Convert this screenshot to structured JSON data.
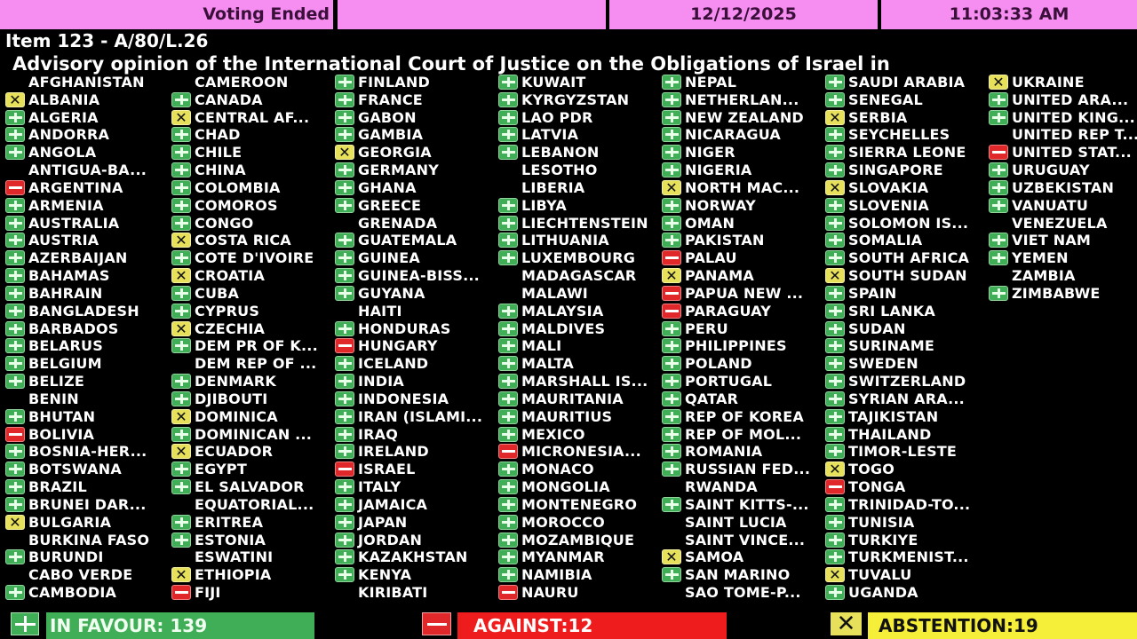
{
  "header": {
    "status": "Voting Ended",
    "blank": "",
    "date": "12/12/2025",
    "time": "11:03:33 AM"
  },
  "item": "Item 123 - A/80/L.26",
  "title": "Advisory opinion of the International Court of Justice on the Obligations of Israel in",
  "colors": {
    "header_bg": "#f58ef0",
    "yes": "#3fae57",
    "no": "#e0282a",
    "abstain": "#e6e05a"
  },
  "vote_legend": {
    "Y": "plus-icon (in favour)",
    "N": "minus-icon (against)",
    "A": "x-icon (abstention)",
    "": "no vote"
  },
  "columns": [
    [
      {
        "n": "AFGHANISTAN",
        "v": ""
      },
      {
        "n": "ALBANIA",
        "v": "A"
      },
      {
        "n": "ALGERIA",
        "v": "Y"
      },
      {
        "n": "ANDORRA",
        "v": "Y"
      },
      {
        "n": "ANGOLA",
        "v": "Y"
      },
      {
        "n": "ANTIGUA-BA...",
        "v": ""
      },
      {
        "n": "ARGENTINA",
        "v": "N"
      },
      {
        "n": "ARMENIA",
        "v": "Y"
      },
      {
        "n": "AUSTRALIA",
        "v": "Y"
      },
      {
        "n": "AUSTRIA",
        "v": "Y"
      },
      {
        "n": "AZERBAIJAN",
        "v": "Y"
      },
      {
        "n": "BAHAMAS",
        "v": "Y"
      },
      {
        "n": "BAHRAIN",
        "v": "Y"
      },
      {
        "n": "BANGLADESH",
        "v": "Y"
      },
      {
        "n": "BARBADOS",
        "v": "Y"
      },
      {
        "n": "BELARUS",
        "v": "Y"
      },
      {
        "n": "BELGIUM",
        "v": "Y"
      },
      {
        "n": "BELIZE",
        "v": "Y"
      },
      {
        "n": "BENIN",
        "v": ""
      },
      {
        "n": "BHUTAN",
        "v": "Y"
      },
      {
        "n": "BOLIVIA",
        "v": "N"
      },
      {
        "n": "BOSNIA-HER...",
        "v": "Y"
      },
      {
        "n": "BOTSWANA",
        "v": "Y"
      },
      {
        "n": "BRAZIL",
        "v": "Y"
      },
      {
        "n": "BRUNEI DAR...",
        "v": "Y"
      },
      {
        "n": "BULGARIA",
        "v": "A"
      },
      {
        "n": "BURKINA FASO",
        "v": ""
      },
      {
        "n": "BURUNDI",
        "v": "Y"
      },
      {
        "n": "CABO VERDE",
        "v": ""
      },
      {
        "n": "CAMBODIA",
        "v": "Y"
      }
    ],
    [
      {
        "n": "CAMEROON",
        "v": ""
      },
      {
        "n": "CANADA",
        "v": "Y"
      },
      {
        "n": "CENTRAL AF...",
        "v": "A"
      },
      {
        "n": "CHAD",
        "v": "Y"
      },
      {
        "n": "CHILE",
        "v": "Y"
      },
      {
        "n": "CHINA",
        "v": "Y"
      },
      {
        "n": "COLOMBIA",
        "v": "Y"
      },
      {
        "n": "COMOROS",
        "v": "Y"
      },
      {
        "n": "CONGO",
        "v": "Y"
      },
      {
        "n": "COSTA RICA",
        "v": "A"
      },
      {
        "n": "COTE D'IVOIRE",
        "v": "Y"
      },
      {
        "n": "CROATIA",
        "v": "A"
      },
      {
        "n": "CUBA",
        "v": "Y"
      },
      {
        "n": "CYPRUS",
        "v": "Y"
      },
      {
        "n": "CZECHIA",
        "v": "A"
      },
      {
        "n": "DEM PR OF K...",
        "v": "Y"
      },
      {
        "n": "DEM REP OF ...",
        "v": ""
      },
      {
        "n": "DENMARK",
        "v": "Y"
      },
      {
        "n": "DJIBOUTI",
        "v": "Y"
      },
      {
        "n": "DOMINICA",
        "v": "A"
      },
      {
        "n": "DOMINICAN ...",
        "v": "Y"
      },
      {
        "n": "ECUADOR",
        "v": "A"
      },
      {
        "n": "EGYPT",
        "v": "Y"
      },
      {
        "n": "EL SALVADOR",
        "v": "Y"
      },
      {
        "n": "EQUATORIAL...",
        "v": ""
      },
      {
        "n": "ERITREA",
        "v": "Y"
      },
      {
        "n": "ESTONIA",
        "v": "Y"
      },
      {
        "n": "ESWATINI",
        "v": ""
      },
      {
        "n": "ETHIOPIA",
        "v": "A"
      },
      {
        "n": "FIJI",
        "v": "N"
      }
    ],
    [
      {
        "n": "FINLAND",
        "v": "Y"
      },
      {
        "n": "FRANCE",
        "v": "Y"
      },
      {
        "n": "GABON",
        "v": "Y"
      },
      {
        "n": "GAMBIA",
        "v": "Y"
      },
      {
        "n": "GEORGIA",
        "v": "A"
      },
      {
        "n": "GERMANY",
        "v": "Y"
      },
      {
        "n": "GHANA",
        "v": "Y"
      },
      {
        "n": "GREECE",
        "v": "Y"
      },
      {
        "n": "GRENADA",
        "v": ""
      },
      {
        "n": "GUATEMALA",
        "v": "Y"
      },
      {
        "n": "GUINEA",
        "v": "Y"
      },
      {
        "n": "GUINEA-BISS...",
        "v": "Y"
      },
      {
        "n": "GUYANA",
        "v": "Y"
      },
      {
        "n": "HAITI",
        "v": ""
      },
      {
        "n": "HONDURAS",
        "v": "Y"
      },
      {
        "n": "HUNGARY",
        "v": "N"
      },
      {
        "n": "ICELAND",
        "v": "Y"
      },
      {
        "n": "INDIA",
        "v": "Y"
      },
      {
        "n": "INDONESIA",
        "v": "Y"
      },
      {
        "n": "IRAN (ISLAMI...",
        "v": "Y"
      },
      {
        "n": "IRAQ",
        "v": "Y"
      },
      {
        "n": "IRELAND",
        "v": "Y"
      },
      {
        "n": "ISRAEL",
        "v": "N"
      },
      {
        "n": "ITALY",
        "v": "Y"
      },
      {
        "n": "JAMAICA",
        "v": "Y"
      },
      {
        "n": "JAPAN",
        "v": "Y"
      },
      {
        "n": "JORDAN",
        "v": "Y"
      },
      {
        "n": "KAZAKHSTAN",
        "v": "Y"
      },
      {
        "n": "KENYA",
        "v": "Y"
      },
      {
        "n": "KIRIBATI",
        "v": ""
      }
    ],
    [
      {
        "n": "KUWAIT",
        "v": "Y"
      },
      {
        "n": "KYRGYZSTAN",
        "v": "Y"
      },
      {
        "n": "LAO PDR",
        "v": "Y"
      },
      {
        "n": "LATVIA",
        "v": "Y"
      },
      {
        "n": "LEBANON",
        "v": "Y"
      },
      {
        "n": "LESOTHO",
        "v": ""
      },
      {
        "n": "LIBERIA",
        "v": ""
      },
      {
        "n": "LIBYA",
        "v": "Y"
      },
      {
        "n": "LIECHTENSTEIN",
        "v": "Y"
      },
      {
        "n": "LITHUANIA",
        "v": "Y"
      },
      {
        "n": "LUXEMBOURG",
        "v": "Y"
      },
      {
        "n": "MADAGASCAR",
        "v": ""
      },
      {
        "n": "MALAWI",
        "v": ""
      },
      {
        "n": "MALAYSIA",
        "v": "Y"
      },
      {
        "n": "MALDIVES",
        "v": "Y"
      },
      {
        "n": "MALI",
        "v": "Y"
      },
      {
        "n": "MALTA",
        "v": "Y"
      },
      {
        "n": "MARSHALL IS...",
        "v": "Y"
      },
      {
        "n": "MAURITANIA",
        "v": "Y"
      },
      {
        "n": "MAURITIUS",
        "v": "Y"
      },
      {
        "n": "MEXICO",
        "v": "Y"
      },
      {
        "n": "MICRONESIA...",
        "v": "N"
      },
      {
        "n": "MONACO",
        "v": "Y"
      },
      {
        "n": "MONGOLIA",
        "v": "Y"
      },
      {
        "n": "MONTENEGRO",
        "v": "Y"
      },
      {
        "n": "MOROCCO",
        "v": "Y"
      },
      {
        "n": "MOZAMBIQUE",
        "v": "Y"
      },
      {
        "n": "MYANMAR",
        "v": "Y"
      },
      {
        "n": "NAMIBIA",
        "v": "Y"
      },
      {
        "n": "NAURU",
        "v": "N"
      }
    ],
    [
      {
        "n": "NEPAL",
        "v": "Y"
      },
      {
        "n": "NETHERLAN...",
        "v": "Y"
      },
      {
        "n": "NEW ZEALAND",
        "v": "Y"
      },
      {
        "n": "NICARAGUA",
        "v": "Y"
      },
      {
        "n": "NIGER",
        "v": "Y"
      },
      {
        "n": "NIGERIA",
        "v": "Y"
      },
      {
        "n": "NORTH MAC...",
        "v": "A"
      },
      {
        "n": "NORWAY",
        "v": "Y"
      },
      {
        "n": "OMAN",
        "v": "Y"
      },
      {
        "n": "PAKISTAN",
        "v": "Y"
      },
      {
        "n": "PALAU",
        "v": "N"
      },
      {
        "n": "PANAMA",
        "v": "A"
      },
      {
        "n": "PAPUA NEW ...",
        "v": "N"
      },
      {
        "n": "PARAGUAY",
        "v": "N"
      },
      {
        "n": "PERU",
        "v": "Y"
      },
      {
        "n": "PHILIPPINES",
        "v": "Y"
      },
      {
        "n": "POLAND",
        "v": "Y"
      },
      {
        "n": "PORTUGAL",
        "v": "Y"
      },
      {
        "n": "QATAR",
        "v": "Y"
      },
      {
        "n": "REP OF KOREA",
        "v": "Y"
      },
      {
        "n": "REP OF MOL...",
        "v": "Y"
      },
      {
        "n": "ROMANIA",
        "v": "Y"
      },
      {
        "n": "RUSSIAN FED...",
        "v": "Y"
      },
      {
        "n": "RWANDA",
        "v": ""
      },
      {
        "n": "SAINT KITTS-...",
        "v": "Y"
      },
      {
        "n": "SAINT LUCIA",
        "v": ""
      },
      {
        "n": "SAINT VINCE...",
        "v": ""
      },
      {
        "n": "SAMOA",
        "v": "A"
      },
      {
        "n": "SAN MARINO",
        "v": "Y"
      },
      {
        "n": "SAO TOME-P...",
        "v": ""
      }
    ],
    [
      {
        "n": "SAUDI ARABIA",
        "v": "Y"
      },
      {
        "n": "SENEGAL",
        "v": "Y"
      },
      {
        "n": "SERBIA",
        "v": "A"
      },
      {
        "n": "SEYCHELLES",
        "v": "Y"
      },
      {
        "n": "SIERRA LEONE",
        "v": "Y"
      },
      {
        "n": "SINGAPORE",
        "v": "Y"
      },
      {
        "n": "SLOVAKIA",
        "v": "A"
      },
      {
        "n": "SLOVENIA",
        "v": "Y"
      },
      {
        "n": "SOLOMON IS...",
        "v": "Y"
      },
      {
        "n": "SOMALIA",
        "v": "Y"
      },
      {
        "n": "SOUTH AFRICA",
        "v": "Y"
      },
      {
        "n": "SOUTH SUDAN",
        "v": "A"
      },
      {
        "n": "SPAIN",
        "v": "Y"
      },
      {
        "n": "SRI LANKA",
        "v": "Y"
      },
      {
        "n": "SUDAN",
        "v": "Y"
      },
      {
        "n": "SURINAME",
        "v": "Y"
      },
      {
        "n": "SWEDEN",
        "v": "Y"
      },
      {
        "n": "SWITZERLAND",
        "v": "Y"
      },
      {
        "n": "SYRIAN ARA...",
        "v": "Y"
      },
      {
        "n": "TAJIKISTAN",
        "v": "Y"
      },
      {
        "n": "THAILAND",
        "v": "Y"
      },
      {
        "n": "TIMOR-LESTE",
        "v": "Y"
      },
      {
        "n": "TOGO",
        "v": "A"
      },
      {
        "n": "TONGA",
        "v": "N"
      },
      {
        "n": "TRINIDAD-TO...",
        "v": "Y"
      },
      {
        "n": "TUNISIA",
        "v": "Y"
      },
      {
        "n": "TURKIYE",
        "v": "Y"
      },
      {
        "n": "TURKMENIST...",
        "v": "Y"
      },
      {
        "n": "TUVALU",
        "v": "A"
      },
      {
        "n": "UGANDA",
        "v": "Y"
      }
    ],
    [
      {
        "n": "UKRAINE",
        "v": "A"
      },
      {
        "n": "UNITED ARA...",
        "v": "Y"
      },
      {
        "n": "UNITED KING...",
        "v": "Y"
      },
      {
        "n": "UNITED REP T...",
        "v": ""
      },
      {
        "n": "UNITED STAT...",
        "v": "N"
      },
      {
        "n": "URUGUAY",
        "v": "Y"
      },
      {
        "n": "UZBEKISTAN",
        "v": "Y"
      },
      {
        "n": "VANUATU",
        "v": "Y"
      },
      {
        "n": "VENEZUELA",
        "v": ""
      },
      {
        "n": "VIET NAM",
        "v": "Y"
      },
      {
        "n": "YEMEN",
        "v": "Y"
      },
      {
        "n": "ZAMBIA",
        "v": ""
      },
      {
        "n": "ZIMBABWE",
        "v": "Y"
      }
    ]
  ],
  "totals": {
    "in_favour": "IN FAVOUR: 139",
    "against": "AGAINST:12",
    "abstention": "ABSTENTION:19"
  }
}
